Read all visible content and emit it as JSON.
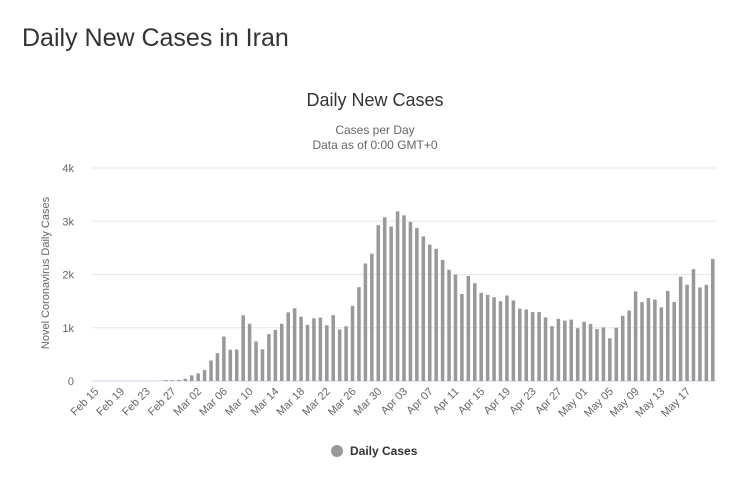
{
  "page": {
    "heading": "Daily New Cases in Iran"
  },
  "chart_data": {
    "type": "bar",
    "title": "Daily New Cases",
    "subtitle": [
      "Cases per Day",
      "Data as of 0:00 GMT+0"
    ],
    "ylabel": "Novel Coronavirus Daily Cases",
    "ylim": [
      0,
      4000
    ],
    "yticks": [
      {
        "value": 0,
        "label": "0"
      },
      {
        "value": 1000,
        "label": "1k"
      },
      {
        "value": 2000,
        "label": "2k"
      },
      {
        "value": 3000,
        "label": "3k"
      },
      {
        "value": 4000,
        "label": "4k"
      }
    ],
    "xticks": [
      {
        "index": 0,
        "label": "Feb 15"
      },
      {
        "index": 4,
        "label": "Feb 19"
      },
      {
        "index": 8,
        "label": "Feb 23"
      },
      {
        "index": 12,
        "label": "Feb 27"
      },
      {
        "index": 16,
        "label": "Mar 02"
      },
      {
        "index": 20,
        "label": "Mar 06"
      },
      {
        "index": 24,
        "label": "Mar 10"
      },
      {
        "index": 28,
        "label": "Mar 14"
      },
      {
        "index": 32,
        "label": "Mar 18"
      },
      {
        "index": 36,
        "label": "Mar 22"
      },
      {
        "index": 40,
        "label": "Mar 26"
      },
      {
        "index": 44,
        "label": "Mar 30"
      },
      {
        "index": 48,
        "label": "Apr 03"
      },
      {
        "index": 52,
        "label": "Apr 07"
      },
      {
        "index": 56,
        "label": "Apr 11"
      },
      {
        "index": 60,
        "label": "Apr 15"
      },
      {
        "index": 64,
        "label": "Apr 19"
      },
      {
        "index": 68,
        "label": "Apr 23"
      },
      {
        "index": 72,
        "label": "Apr 27"
      },
      {
        "index": 76,
        "label": "May 01"
      },
      {
        "index": 80,
        "label": "May 05"
      },
      {
        "index": 84,
        "label": "May 09"
      },
      {
        "index": 88,
        "label": "May 13"
      },
      {
        "index": 92,
        "label": "May 17"
      }
    ],
    "grid": true,
    "legend_position": "bottom-center",
    "series": [
      {
        "name": "Daily Cases",
        "color": "#999999",
        "values": [
          0,
          0,
          0,
          0,
          0,
          0,
          0,
          0,
          0,
          0,
          3,
          18,
          15,
          19,
          43,
          106,
          143,
          205,
          385,
          523,
          835,
          586,
          591,
          1234,
          1076,
          743,
          595,
          881,
          958,
          1075,
          1289,
          1365,
          1209,
          1053,
          1178,
          1192,
          1046,
          1237,
          966,
          1028,
          1411,
          1762,
          2206,
          2389,
          2926,
          3076,
          2901,
          3186,
          3111,
          2988,
          2875,
          2715,
          2560,
          2483,
          2274,
          2089,
          1997,
          1634,
          1972,
          1837,
          1657,
          1617,
          1574,
          1499,
          1606,
          1512,
          1358,
          1343,
          1294,
          1297,
          1194,
          1030,
          1168,
          1134,
          1153,
          991,
          1112,
          1073,
          976,
          1006,
          802,
          1000,
          1223,
          1323,
          1683,
          1481,
          1556,
          1529,
          1383,
          1691,
          1485,
          1958,
          1808,
          2102,
          1757,
          1806,
          2294
        ]
      }
    ]
  }
}
